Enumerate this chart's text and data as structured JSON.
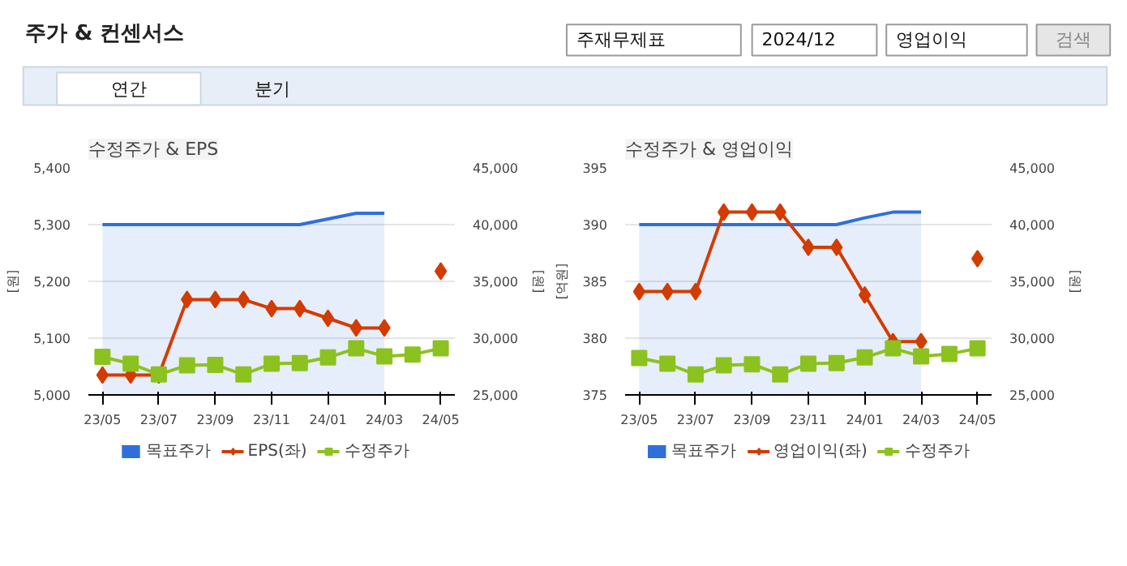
{
  "chart_data": [
    {
      "type": "other",
      "title": "주가 & 컨센서스",
      "annotations": [
        "주재무제표",
        "2024/12",
        "영업이익",
        "검색",
        "연간",
        "분기"
      ]
    },
    {
      "type": "line",
      "title": "수정주가 & EPS",
      "ylabel": "[원]",
      "y2label": "[원]",
      "categories": [
        "23/05",
        null,
        "23/07",
        null,
        "23/09",
        null,
        "23/11",
        null,
        "24/01",
        null,
        "24/03",
        null,
        "24/05"
      ],
      "ylim": [
        5000,
        5400
      ],
      "yticks": [
        {
          "value": 5000,
          "label": "5,000"
        },
        {
          "value": 5100,
          "label": "5,100"
        },
        {
          "value": 5200,
          "label": "5,200"
        },
        {
          "value": 5300,
          "label": "5,300"
        },
        {
          "value": 5400,
          "label": "5,400"
        }
      ],
      "y2lim": [
        25000,
        45000
      ],
      "y2ticks": [
        {
          "value": 25000,
          "label": "25,000"
        },
        {
          "value": 30000,
          "label": "30,000"
        },
        {
          "value": 35000,
          "label": "35,000"
        },
        {
          "value": 40000,
          "label": "40,000"
        },
        {
          "value": 45000,
          "label": "45,000"
        }
      ],
      "grid": "y",
      "legend": "bottom",
      "series": [
        {
          "name": "목표주가",
          "type": "area",
          "axis": "y2",
          "color": "#2f6fdc",
          "marker": "none",
          "values": [
            40000,
            40000,
            40000,
            40000,
            40000,
            40000,
            40000,
            40000,
            40500,
            41000,
            41000,
            null,
            null
          ]
        },
        {
          "name": "EPS(좌)",
          "type": "line",
          "axis": "y",
          "color": "#d23c00",
          "marker": "diamond",
          "values": [
            5035,
            5035,
            5035,
            5168,
            5168,
            5168,
            5152,
            5152,
            5135,
            5118,
            5118,
            null,
            5218
          ]
        },
        {
          "name": "수정주가",
          "type": "line",
          "axis": "y2",
          "color": "#8cc21f",
          "marker": "square",
          "values": [
            28350,
            27750,
            26800,
            27600,
            27650,
            26800,
            27750,
            27800,
            28300,
            29100,
            28400,
            28550,
            29100
          ]
        }
      ]
    },
    {
      "type": "line",
      "title": "수정주가 & 영업이익",
      "ylabel": "[억원]",
      "y2label": "[원]",
      "categories": [
        "23/05",
        null,
        "23/07",
        null,
        "23/09",
        null,
        "23/11",
        null,
        "24/01",
        null,
        "24/03",
        null,
        "24/05"
      ],
      "ylim": [
        375,
        395
      ],
      "yticks": [
        375,
        380,
        385,
        390,
        395
      ],
      "y2lim": [
        25000,
        45000
      ],
      "y2ticks": [
        {
          "value": 25000,
          "label": "25,000"
        },
        {
          "value": 30000,
          "label": "30,000"
        },
        {
          "value": 35000,
          "label": "35,000"
        },
        {
          "value": 40000,
          "label": "40,000"
        },
        {
          "value": 45000,
          "label": "45,000"
        }
      ],
      "grid": "y",
      "legend": "bottom",
      "series": [
        {
          "name": "목표주가",
          "type": "area",
          "axis": "y2",
          "color": "#2f6fdc",
          "marker": "none",
          "values": [
            40000,
            40000,
            40000,
            40000,
            40000,
            40000,
            40000,
            40000,
            40600,
            41100,
            41100,
            null,
            null
          ]
        },
        {
          "name": "영업이익(좌)",
          "type": "line",
          "axis": "y",
          "color": "#d23c00",
          "marker": "diamond",
          "values": [
            384.1,
            384.1,
            384.1,
            391.1,
            391.1,
            391.1,
            388,
            388,
            383.8,
            379.7,
            379.7,
            null,
            387
          ]
        },
        {
          "name": "수정주가",
          "type": "line",
          "axis": "y2",
          "color": "#8cc21f",
          "marker": "square",
          "values": [
            28250,
            27750,
            26800,
            27600,
            27700,
            26800,
            27750,
            27800,
            28300,
            29100,
            28400,
            28600,
            29100
          ]
        }
      ]
    }
  ]
}
